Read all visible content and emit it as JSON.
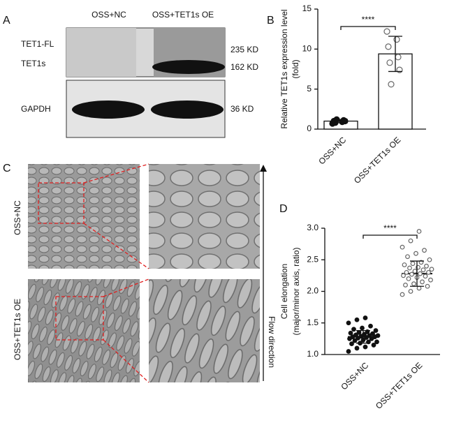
{
  "panels": {
    "a": {
      "label": "A",
      "columns": [
        "OSS+NC",
        "OSS+TET1s OE"
      ],
      "rows": [
        "TET1-FL",
        "TET1s",
        "GAPDH"
      ],
      "sizes": [
        "235 KD",
        "162 KD",
        "36 KD"
      ]
    },
    "c": {
      "label": "C",
      "rows": [
        "OSS+NC",
        "OSS+TET1s OE"
      ],
      "arrow_label": "Flow direction"
    }
  },
  "chart_data": [
    {
      "type": "bar",
      "panel": "B",
      "categories": [
        "OSS+NC",
        "OSS+TET1s OE"
      ],
      "values": [
        1.0,
        9.4
      ],
      "errors": [
        0.2,
        2.2
      ],
      "points": [
        [
          0.7,
          0.9,
          1.0,
          1.1,
          0.8,
          1.0,
          1.2
        ],
        [
          12.2,
          11.2,
          10.3,
          9.0,
          8.3,
          7.4,
          5.6
        ]
      ],
      "filled": [
        true,
        false
      ],
      "y_label": [
        "Relative TET1s expression level",
        "(fold)"
      ],
      "significance": "****",
      "ylim": [
        0,
        15
      ],
      "yticks": [
        0,
        5,
        10,
        15
      ]
    },
    {
      "type": "dot",
      "panel": "D",
      "categories": [
        "OSS+NC",
        "OSS+TET1s OE"
      ],
      "values": [
        1.28,
        2.28
      ],
      "errors": [
        0.1,
        0.2
      ],
      "points": [
        [
          1.05,
          1.1,
          1.12,
          1.15,
          1.17,
          1.18,
          1.2,
          1.2,
          1.22,
          1.23,
          1.25,
          1.25,
          1.26,
          1.27,
          1.28,
          1.28,
          1.29,
          1.3,
          1.3,
          1.31,
          1.32,
          1.33,
          1.34,
          1.35,
          1.36,
          1.38,
          1.4,
          1.42,
          1.45,
          1.5,
          1.55,
          1.58
        ],
        [
          1.95,
          2.0,
          2.05,
          2.08,
          2.1,
          2.12,
          2.15,
          2.18,
          2.2,
          2.22,
          2.24,
          2.25,
          2.27,
          2.28,
          2.3,
          2.3,
          2.32,
          2.34,
          2.35,
          2.37,
          2.38,
          2.4,
          2.42,
          2.44,
          2.46,
          2.5,
          2.55,
          2.6,
          2.65,
          2.7,
          2.8,
          2.95
        ]
      ],
      "filled": [
        true,
        false
      ],
      "y_label": [
        "Cell elongation",
        "(major/minor axis, ratio)"
      ],
      "significance": "****",
      "ylim": [
        1.0,
        3.0
      ],
      "yticks": [
        {
          "value": 1.0,
          "label": "1.0"
        },
        1.5,
        {
          "value": 2.0,
          "label": "2.0"
        },
        2.5,
        {
          "value": 3.0,
          "label": "3.0"
        }
      ]
    }
  ]
}
